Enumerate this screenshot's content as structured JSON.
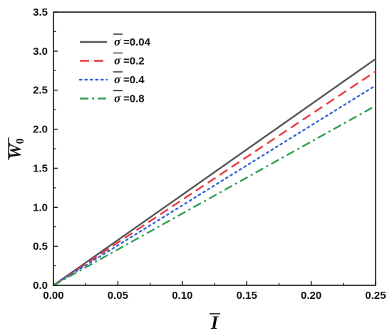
{
  "chart_data": {
    "type": "line",
    "title": "",
    "xlabel": "I",
    "ylabel": "W",
    "ylabel_sub": "0",
    "xlim": [
      0,
      0.25
    ],
    "ylim": [
      0,
      3.5
    ],
    "x_ticks": [
      "0.00",
      "0.05",
      "0.10",
      "0.15",
      "0.20",
      "0.25"
    ],
    "y_ticks": [
      "0.0",
      "0.5",
      "1.0",
      "1.5",
      "2.0",
      "2.5",
      "3.0",
      "3.5"
    ],
    "grid": false,
    "legend_position": "top-left",
    "legend_symbol": "σ",
    "series": [
      {
        "name": "=0.04",
        "color": "#555555",
        "style": "solid",
        "x": [
          0,
          0.25
        ],
        "y": [
          0,
          2.9
        ]
      },
      {
        "name": "=0.2",
        "color": "#e8373d",
        "style": "dashed",
        "x": [
          0,
          0.25
        ],
        "y": [
          0,
          2.74
        ]
      },
      {
        "name": "=0.4",
        "color": "#2f63d9",
        "style": "dotted",
        "x": [
          0,
          0.25
        ],
        "y": [
          0,
          2.56
        ]
      },
      {
        "name": "=0.8",
        "color": "#2e9e4f",
        "style": "dashdot",
        "x": [
          0,
          0.25
        ],
        "y": [
          0,
          2.3
        ]
      }
    ]
  }
}
